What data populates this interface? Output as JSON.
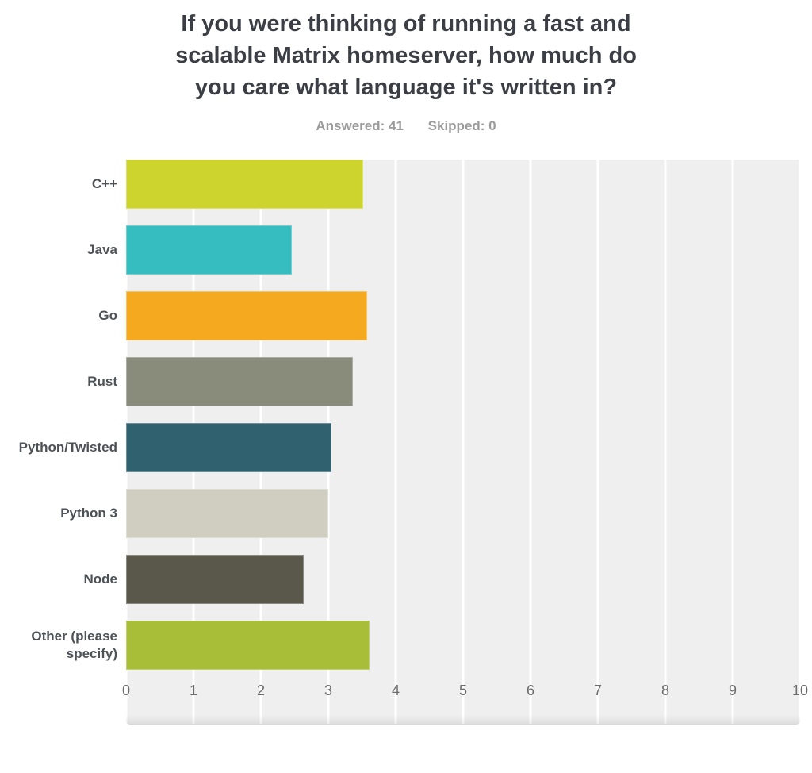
{
  "header": {
    "title": "If you were thinking of running a fast and scalable Matrix homeserver, how much do you care what language it's written in?",
    "title_lines": [
      "If you were thinking of running a fast and",
      "scalable Matrix homeserver, how much do",
      "you care what language it's written in?"
    ],
    "answered_label": "Answered: 41",
    "skipped_label": "Skipped: 0"
  },
  "chart_data": {
    "type": "bar",
    "orientation": "horizontal",
    "title": "If you were thinking of running a fast and scalable Matrix homeserver, how much do you care what language it's written in?",
    "categories": [
      "C++",
      "Java",
      "Go",
      "Rust",
      "Python/Twisted",
      "Python 3",
      "Node",
      "Other (please specify)"
    ],
    "values": [
      3.52,
      2.46,
      3.58,
      3.36,
      3.05,
      3.0,
      2.64,
      3.61
    ],
    "bar_colors": [
      "#CDD42E",
      "#35BDBF",
      "#F5A91F",
      "#8A8C7B",
      "#2F616F",
      "#CFCEC0",
      "#5A584A",
      "#A8BE38"
    ],
    "xlabel": "",
    "ylabel": "",
    "xlim": [
      0,
      10
    ],
    "x_ticks": [
      "0",
      "1",
      "2",
      "3",
      "4",
      "5",
      "6",
      "7",
      "8",
      "9",
      "10"
    ],
    "grid": true,
    "legend": "none",
    "plot_background": "#EFEFEF",
    "gridline_color": "#FFFFFF"
  }
}
